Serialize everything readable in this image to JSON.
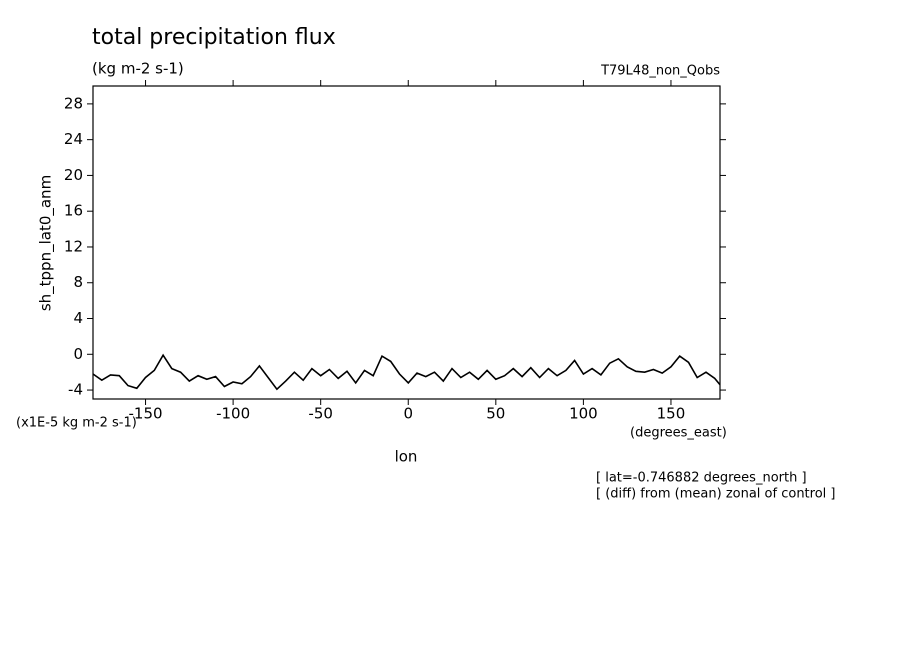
{
  "chart_data": {
    "type": "line",
    "title": "total precipitation flux",
    "subtitle": "(kg m-2 s-1)",
    "dataset": "T79L48_non_Qobs",
    "y_label": "sh_tppn_lat0_anm",
    "y_units": "(x1E-5 kg m-2 s-1)",
    "x_label": "lon",
    "x_units": "(degrees_east)",
    "notes": [
      "[ lat=-0.746882 degrees_north ]",
      "[ (diff) from (mean) zonal of control ]"
    ],
    "color": "#000000",
    "xlim": [
      -180,
      178
    ],
    "ylim": [
      -5,
      30
    ],
    "xticks": [
      -150,
      -100,
      -50,
      0,
      50,
      100,
      150
    ],
    "yticks": [
      -4,
      0,
      4,
      8,
      12,
      16,
      20,
      24,
      28
    ],
    "x": [
      -180,
      -175,
      -170,
      -165,
      -160,
      -155,
      -150,
      -145,
      -140,
      -135,
      -130,
      -125,
      -120,
      -115,
      -110,
      -105,
      -100,
      -95,
      -90,
      -85,
      -80,
      -75,
      -70,
      -65,
      -60,
      -55,
      -50,
      -45,
      -40,
      -35,
      -30,
      -25,
      -20,
      -15,
      -10,
      -5,
      0,
      5,
      10,
      15,
      20,
      25,
      30,
      35,
      40,
      45,
      50,
      55,
      60,
      65,
      70,
      75,
      80,
      85,
      90,
      95,
      100,
      105,
      110,
      115,
      120,
      125,
      130,
      135,
      140,
      145,
      150,
      155,
      160,
      165,
      170,
      175,
      178
    ],
    "values": [
      -2.2,
      -2.9,
      -2.3,
      -2.4,
      -3.5,
      -3.8,
      -2.6,
      -1.8,
      -0.1,
      -1.6,
      -2.0,
      -3.0,
      -2.4,
      -2.8,
      -2.5,
      -3.6,
      -3.1,
      -3.3,
      -2.5,
      -1.3,
      -2.6,
      -3.9,
      -3.0,
      -2.0,
      -2.9,
      -1.6,
      -2.4,
      -1.7,
      -2.7,
      -1.9,
      -3.2,
      -1.8,
      -2.4,
      -0.2,
      -0.8,
      -2.2,
      -3.2,
      -2.1,
      -2.5,
      -2.0,
      -3.0,
      -1.6,
      -2.6,
      -2.0,
      -2.8,
      -1.8,
      -2.8,
      -2.4,
      -1.6,
      -2.5,
      -1.5,
      -2.6,
      -1.6,
      -2.4,
      -1.8,
      -0.7,
      -2.2,
      -1.6,
      -2.3,
      -1.0,
      -0.5,
      -1.4,
      -1.9,
      -2.0,
      -1.7,
      -2.1,
      -1.4,
      -0.2,
      -0.9,
      -2.6,
      -2.0,
      -2.7,
      -3.4
    ]
  }
}
